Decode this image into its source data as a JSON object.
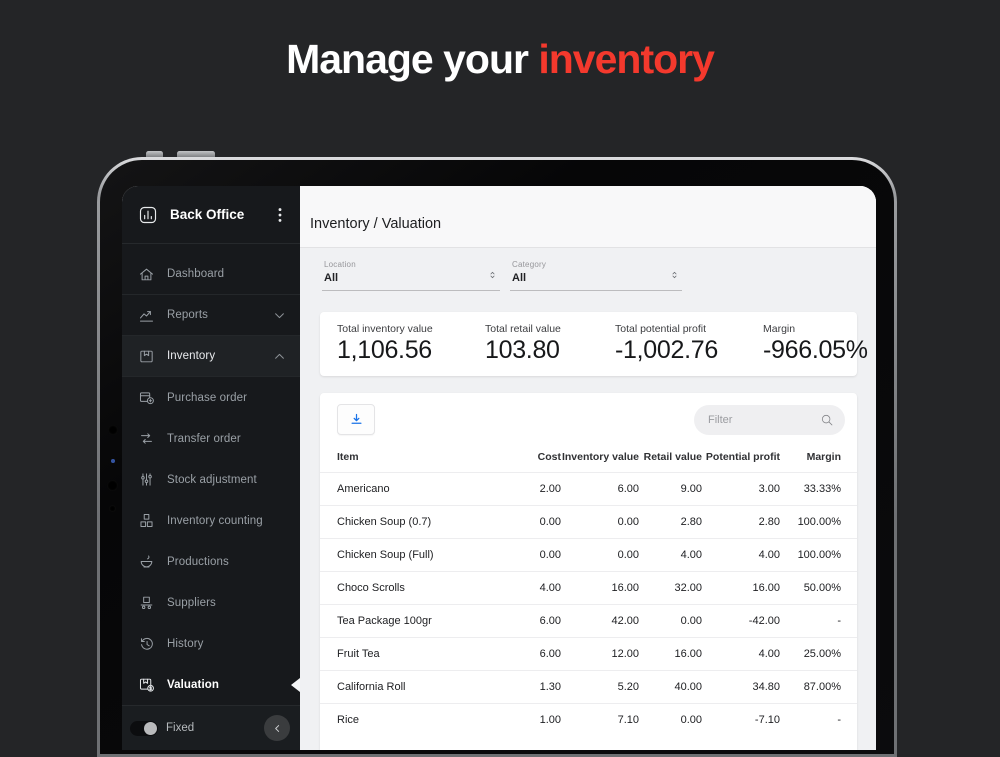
{
  "page": {
    "title_prefix": "Manage your",
    "title_accent": "inventory",
    "accent_color": "#f4392d",
    "background_color": "#242527"
  },
  "sidebar": {
    "app_title": "Back Office",
    "app_icon": "back-office-icon",
    "overflow_menu_icon": "kebab-icon",
    "items": [
      {
        "label": "Dashboard",
        "icon": "home-icon",
        "separator": true
      },
      {
        "label": "Reports",
        "icon": "reports-icon",
        "chevron": "down",
        "separator": true
      },
      {
        "label": "Inventory",
        "icon": "inventory-icon",
        "chevron": "up",
        "state": "expanded",
        "separator": true
      },
      {
        "label": "Purchase order",
        "icon": "purchase-order-icon",
        "sub": true
      },
      {
        "label": "Transfer order",
        "icon": "transfer-order-icon",
        "sub": true
      },
      {
        "label": "Stock adjustment",
        "icon": "stock-adjustment-icon",
        "sub": true
      },
      {
        "label": "Inventory counting",
        "icon": "inventory-counting-icon",
        "sub": true
      },
      {
        "label": "Productions",
        "icon": "productions-icon",
        "sub": true
      },
      {
        "label": "Suppliers",
        "icon": "suppliers-icon",
        "sub": true
      },
      {
        "label": "History",
        "icon": "history-icon",
        "sub": true
      },
      {
        "label": "Valuation",
        "icon": "valuation-icon",
        "sub": true,
        "state": "active"
      }
    ],
    "footer": {
      "toggle_label": "Fixed",
      "toggle_state": "on",
      "collapse_icon": "chevron-left-icon"
    }
  },
  "main": {
    "breadcrumb": "Inventory / Valuation",
    "filters": [
      {
        "label": "Location",
        "value": "All",
        "icon": "chevron-updown-icon"
      },
      {
        "label": "Category",
        "value": "All",
        "icon": "chevron-updown-icon"
      }
    ],
    "stats": [
      {
        "label": "Total inventory value",
        "value": "1,106.56"
      },
      {
        "label": "Total retail value",
        "value": "103.80"
      },
      {
        "label": "Total potential profit",
        "value": "-1,002.76"
      },
      {
        "label": "Margin",
        "value": "-966.05%"
      }
    ],
    "table": {
      "export_icon": "download-icon",
      "export_accent": "#1a73e8",
      "filter_placeholder": "Filter",
      "filter_icon": "search-icon",
      "columns": [
        "Item",
        "Cost",
        "Inventory value",
        "Retail value",
        "Potential profit",
        "Margin"
      ],
      "rows": [
        [
          "Americano",
          "2.00",
          "6.00",
          "9.00",
          "3.00",
          "33.33%"
        ],
        [
          "Chicken Soup (0.7)",
          "0.00",
          "0.00",
          "2.80",
          "2.80",
          "100.00%"
        ],
        [
          "Chicken Soup (Full)",
          "0.00",
          "0.00",
          "4.00",
          "4.00",
          "100.00%"
        ],
        [
          "Choco Scrolls",
          "4.00",
          "16.00",
          "32.00",
          "16.00",
          "50.00%"
        ],
        [
          "Tea Package 100gr",
          "6.00",
          "42.00",
          "0.00",
          "-42.00",
          "-"
        ],
        [
          "Fruit Tea",
          "6.00",
          "12.00",
          "16.00",
          "4.00",
          "25.00%"
        ],
        [
          "California Roll",
          "1.30",
          "5.20",
          "40.00",
          "34.80",
          "87.00%"
        ],
        [
          "Rice",
          "1.00",
          "7.10",
          "0.00",
          "-7.10",
          "-"
        ]
      ]
    }
  }
}
